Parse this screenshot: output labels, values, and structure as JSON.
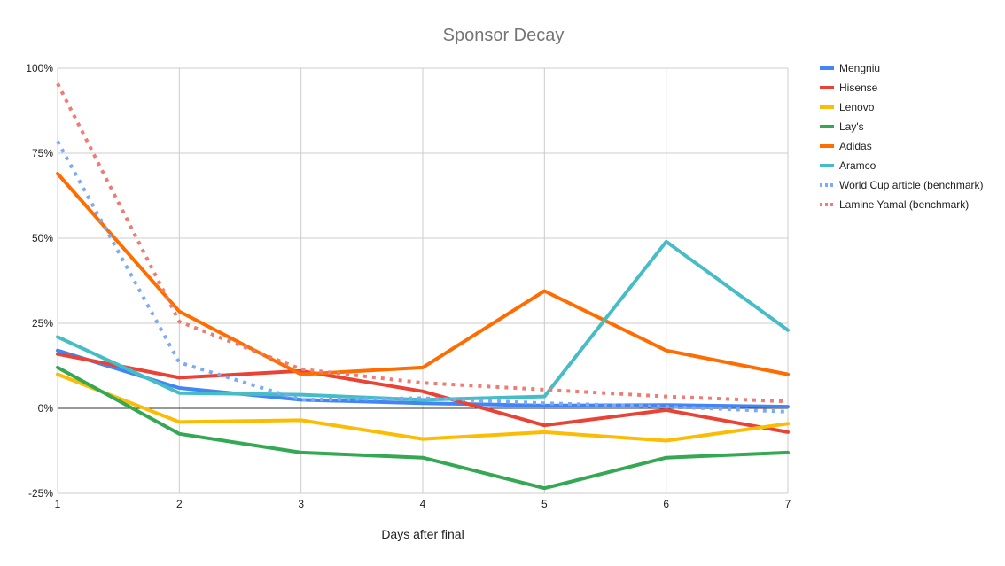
{
  "chart_data": {
    "type": "line",
    "title": "Sponsor Decay",
    "xlabel": "Days after final",
    "ylabel": "",
    "x": [
      1,
      2,
      3,
      4,
      5,
      6,
      7
    ],
    "x_tick_labels": [
      "1",
      "2",
      "3",
      "4",
      "5",
      "6",
      "7"
    ],
    "xlim": [
      1,
      7
    ],
    "ylim": [
      -0.25,
      1.0
    ],
    "y_ticks": [
      -0.25,
      0,
      0.25,
      0.5,
      0.75,
      1.0
    ],
    "y_tick_labels": [
      "-25%",
      "0%",
      "25%",
      "50%",
      "75%",
      "100%"
    ],
    "grid": true,
    "legend_position": "right",
    "series": [
      {
        "name": "Mengniu",
        "color": "#4285F4",
        "dashed": false,
        "values": [
          0.17,
          0.06,
          0.025,
          0.015,
          0.008,
          0.01,
          0.005
        ]
      },
      {
        "name": "Hisense",
        "color": "#EA4335",
        "dashed": false,
        "values": [
          0.16,
          0.09,
          0.11,
          0.05,
          -0.05,
          -0.005,
          -0.07
        ]
      },
      {
        "name": "Lenovo",
        "color": "#FBBC04",
        "dashed": false,
        "values": [
          0.1,
          -0.04,
          -0.035,
          -0.09,
          -0.07,
          -0.095,
          -0.045
        ]
      },
      {
        "name": "Lay's",
        "color": "#34A853",
        "dashed": false,
        "values": [
          0.12,
          -0.075,
          -0.13,
          -0.145,
          -0.235,
          -0.145,
          -0.13
        ]
      },
      {
        "name": "Adidas",
        "color": "#FF6D01",
        "dashed": false,
        "values": [
          0.69,
          0.285,
          0.1,
          0.12,
          0.345,
          0.17,
          0.1
        ]
      },
      {
        "name": "Aramco",
        "color": "#46BDC6",
        "dashed": false,
        "values": [
          0.21,
          0.045,
          0.04,
          0.025,
          0.035,
          0.49,
          0.23
        ]
      },
      {
        "name": "World Cup article (benchmark)",
        "color": "#7BAAF7",
        "dashed": true,
        "values": [
          0.785,
          0.135,
          0.025,
          0.03,
          0.015,
          0.005,
          -0.01
        ]
      },
      {
        "name": "Lamine Yamal (benchmark)",
        "color": "#F07B72",
        "dashed": true,
        "values": [
          0.955,
          0.255,
          0.115,
          0.075,
          0.055,
          0.035,
          0.02
        ]
      }
    ]
  }
}
